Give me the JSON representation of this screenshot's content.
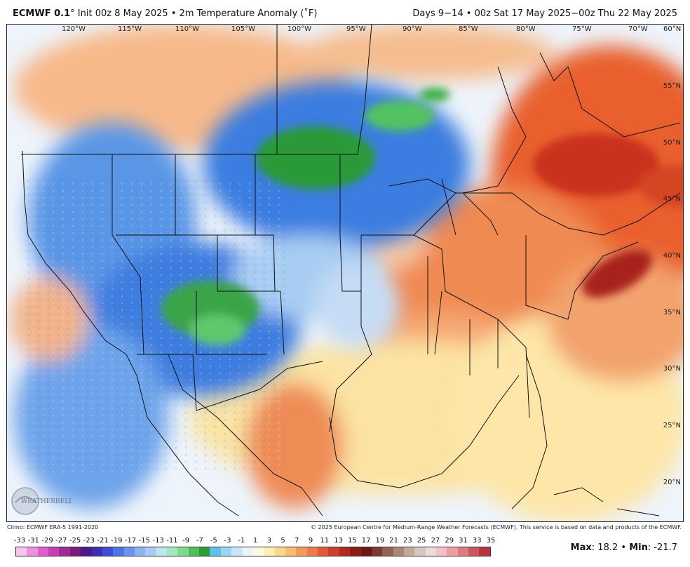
{
  "header": {
    "model": "ECMWF 0.1",
    "degree_mark": "°",
    "init": "Init 00z 8 May 2025",
    "separator": "•",
    "variable": "2m Temperature Anomaly (˚F)",
    "valid_range": "Days 9−14 • 00z Sat 17 May 2025−00z Thu 22 May 2025"
  },
  "map": {
    "longitude_labels": [
      "120°W",
      "115°W",
      "110°W",
      "105°W",
      "100°W",
      "95°W",
      "90°W",
      "85°W",
      "80°W",
      "75°W",
      "70°W",
      "60°N"
    ],
    "latitude_labels": [
      "55°N",
      "50°N",
      "45°N",
      "40°N",
      "35°N",
      "30°N",
      "25°N",
      "20°N"
    ],
    "regions": {
      "cold_core_north_plains": "green",
      "cold_core_southwest": "green",
      "warm_core_quebec": "dark-red",
      "warm_core_mid_atlantic_offshore": "dark-red"
    }
  },
  "footer": {
    "climo": "Climo: ECMWF ERA-5 1991-2020",
    "copyright": "© 2025 European Centre for Medium-Range Weather Forecasts (ECMWF). This service is based on data and products of the ECMWF."
  },
  "logo": {
    "text": "WEATHERBELL"
  },
  "legend": {
    "ticks": [
      "-33",
      "-31",
      "-29",
      "-27",
      "-25",
      "-23",
      "-21",
      "-19",
      "-17",
      "-15",
      "-13",
      "-11",
      "-9",
      "-7",
      "-5",
      "-3",
      "-1",
      "1",
      "3",
      "5",
      "7",
      "9",
      "11",
      "13",
      "15",
      "17",
      "19",
      "21",
      "23",
      "25",
      "27",
      "29",
      "31",
      "33",
      "35"
    ],
    "colors": [
      "#f6c3ee",
      "#ee8fe0",
      "#e25ccd",
      "#c93bb8",
      "#a02a9a",
      "#7a1c7e",
      "#4a1a86",
      "#3b2fb2",
      "#3d4fd6",
      "#4f72e4",
      "#6a93ee",
      "#8db3f3",
      "#a9c9f7",
      "#b9e9ec",
      "#a4e6c0",
      "#7fd98f",
      "#4dc05a",
      "#2b9e36",
      "#5fc0f0",
      "#98d6f3",
      "#c8e8f8",
      "#eef4fb",
      "#fffbe3",
      "#fdeeb2",
      "#fcd98a",
      "#f9bc6e",
      "#f59a58",
      "#ee7a46",
      "#e15a36",
      "#cc3f29",
      "#b02a1e",
      "#8e1c17",
      "#6d1612",
      "#7a3a2e",
      "#94604f",
      "#ab8575",
      "#c3a89e",
      "#d7c5bf",
      "#eddada",
      "#f6c1c4",
      "#ee9ea3",
      "#e17a82",
      "#cc5560",
      "#b8353f"
    ],
    "max_label": "Max",
    "max_value": "18.2",
    "min_label": "Min",
    "min_value": "-21.7"
  }
}
